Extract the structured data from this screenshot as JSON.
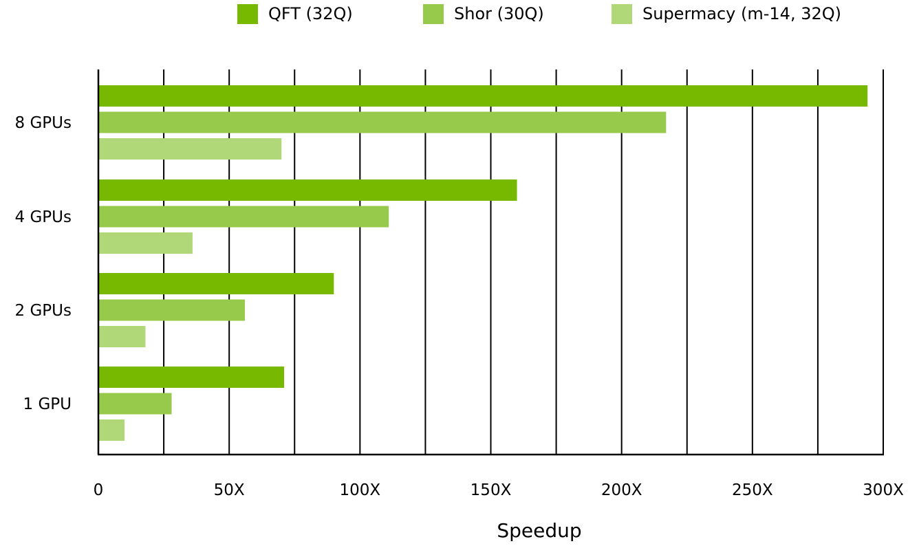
{
  "chart_data": {
    "type": "bar",
    "orientation": "horizontal",
    "categories": [
      "8 GPUs",
      "4 GPUs",
      "2 GPUs",
      "1 GPU"
    ],
    "series": [
      {
        "name": "QFT (32Q)",
        "color": "#76b900",
        "values": [
          294,
          160,
          90,
          71
        ]
      },
      {
        "name": "Shor (30Q)",
        "color": "#97c94b",
        "values": [
          217,
          111,
          56,
          28
        ]
      },
      {
        "name": "Supermacy (m-14, 32Q)",
        "color": "#b0d878",
        "values": [
          70,
          36,
          18,
          10
        ]
      }
    ],
    "xlabel": "Speedup",
    "ylabel": "",
    "xlim": [
      0,
      300
    ],
    "xticks": [
      0,
      50,
      100,
      150,
      200,
      250,
      300
    ],
    "xtick_labels": [
      "0",
      "50X",
      "100X",
      "150X",
      "200X",
      "250X",
      "300X"
    ],
    "grid": true,
    "legend_position": "top-right"
  }
}
